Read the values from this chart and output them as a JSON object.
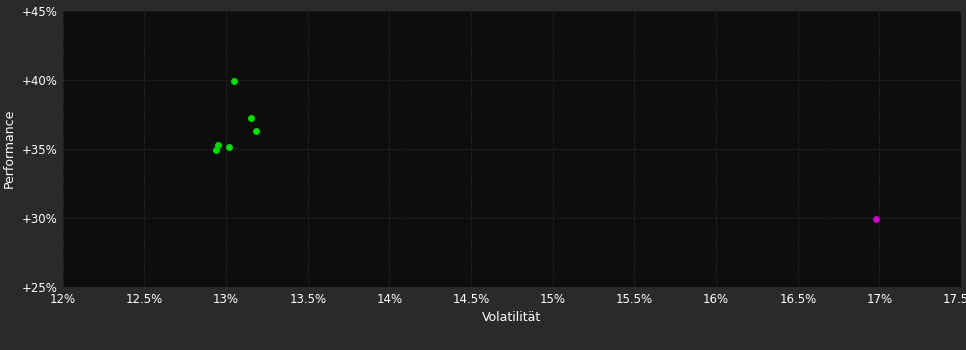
{
  "outer_bg_color": "#2a2a2a",
  "plot_bg_color": "#0d0d0d",
  "text_color": "#ffffff",
  "xlabel": "Volatilität",
  "ylabel": "Performance",
  "xlim": [
    0.12,
    0.175
  ],
  "ylim": [
    0.25,
    0.45
  ],
  "xticks": [
    0.12,
    0.125,
    0.13,
    0.135,
    0.14,
    0.145,
    0.15,
    0.155,
    0.16,
    0.165,
    0.17,
    0.175
  ],
  "yticks": [
    0.25,
    0.3,
    0.35,
    0.4,
    0.45
  ],
  "green_points": [
    [
      0.1305,
      0.399
    ],
    [
      0.1315,
      0.372
    ],
    [
      0.1318,
      0.363
    ],
    [
      0.1295,
      0.353
    ],
    [
      0.1302,
      0.351
    ],
    [
      0.1294,
      0.349
    ]
  ],
  "magenta_points": [
    [
      0.1698,
      0.299
    ]
  ],
  "green_color": "#00dd00",
  "magenta_color": "#cc00cc",
  "marker_size": 5,
  "grid_color": "#3a3a3a",
  "tick_fontsize": 8.5,
  "label_fontsize": 9
}
